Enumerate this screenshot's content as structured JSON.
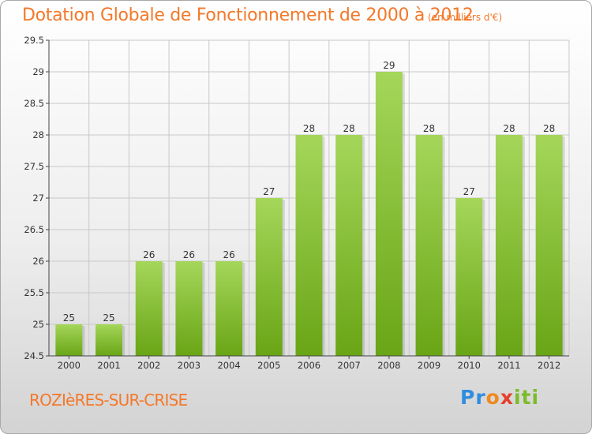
{
  "chart_data": {
    "type": "bar",
    "title": "Dotation Globale de Fonctionnement de 2000 à 2012",
    "unit_label": "(en milliers d'€)",
    "categories": [
      "2000",
      "2001",
      "2002",
      "2003",
      "2004",
      "2005",
      "2006",
      "2007",
      "2008",
      "2009",
      "2010",
      "2011",
      "2012"
    ],
    "values": [
      25,
      25,
      26,
      26,
      26,
      27,
      28,
      28,
      29,
      28,
      27,
      28,
      28
    ],
    "ylim": [
      24.5,
      29.5
    ],
    "yticks": [
      24.5,
      25,
      25.5,
      26,
      26.5,
      27,
      27.5,
      28,
      28.5,
      29,
      29.5
    ],
    "grid": true,
    "xlabel": "",
    "ylabel": "",
    "colors": {
      "bar_light": "#a5d65a",
      "bar_dark": "#69a516",
      "grid": "#c8c8c8",
      "axis": "#444444",
      "accent": "#f4782a"
    }
  },
  "footer": {
    "commune": "ROZIèRES-SUR-CRISE",
    "logo": [
      "Pr",
      "o",
      "x",
      "iti"
    ]
  }
}
